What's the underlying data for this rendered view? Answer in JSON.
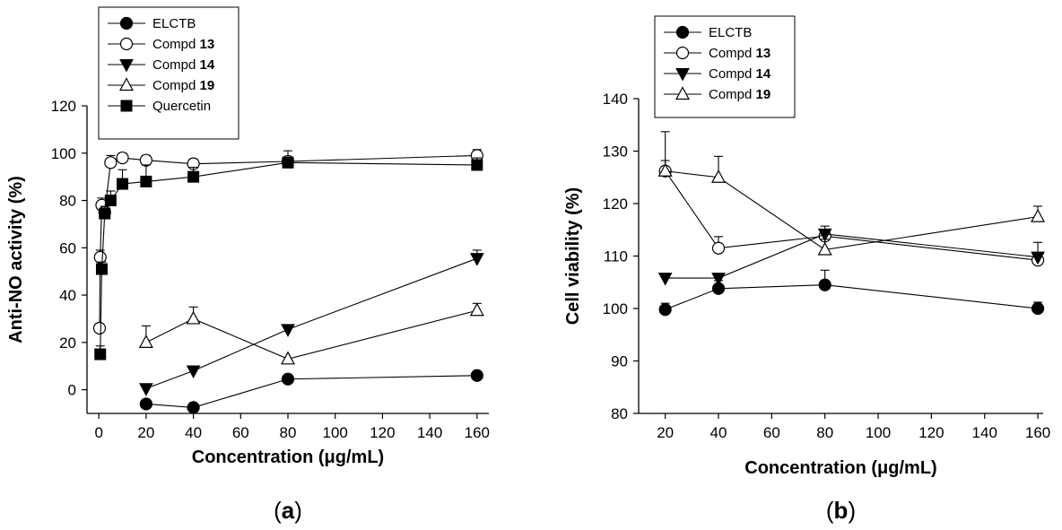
{
  "chart_data": [
    {
      "type": "line",
      "panel": "a",
      "xlabel": "Concentration (μg/mL)",
      "ylabel": "Anti-NO activity (%)",
      "xlim": [
        -5,
        165
      ],
      "ylim": [
        -10,
        120
      ],
      "xticks": [
        0,
        20,
        40,
        60,
        80,
        100,
        120,
        140,
        160
      ],
      "yticks": [
        0,
        20,
        40,
        60,
        80,
        100,
        120
      ],
      "legend_position": "top-left",
      "series": [
        {
          "name": "ELCTB",
          "bold": "",
          "marker": "circle-filled",
          "x": [
            20,
            40,
            80,
            160
          ],
          "y": [
            -6,
            -7.5,
            4.5,
            6
          ],
          "err": [
            0,
            0,
            0,
            0
          ]
        },
        {
          "name": "Compd ",
          "bold": "13",
          "marker": "circle-open",
          "x": [
            0.3,
            0.6,
            1.25,
            2.5,
            5,
            10,
            20,
            40,
            80,
            160
          ],
          "y": [
            26,
            56,
            78,
            75,
            96,
            98,
            97,
            95.5,
            96.5,
            99
          ],
          "err": [
            0,
            3,
            3,
            3,
            3,
            2,
            2,
            2,
            2,
            2.5
          ]
        },
        {
          "name": "Compd ",
          "bold": "14",
          "marker": "triangle-down-filled",
          "x": [
            20,
            40,
            80,
            160
          ],
          "y": [
            0.5,
            8,
            25.5,
            55.5
          ],
          "err": [
            0,
            0,
            0,
            3.5
          ]
        },
        {
          "name": "Compd ",
          "bold": "19",
          "marker": "triangle-up-open",
          "x": [
            20,
            40,
            80,
            160
          ],
          "y": [
            20,
            30,
            13,
            33.5
          ],
          "err": [
            7,
            5,
            0,
            3
          ]
        },
        {
          "name": "Quercetin",
          "bold": "",
          "marker": "square-filled",
          "x": [
            0.6,
            1.25,
            2.5,
            5,
            10,
            20,
            40,
            80,
            160
          ],
          "y": [
            15,
            51,
            74.5,
            80,
            87,
            88,
            90,
            96,
            95
          ],
          "err": [
            3.5,
            3,
            3,
            4,
            6,
            7,
            4,
            5,
            3
          ]
        }
      ],
      "panel_label": {
        "open": "(",
        "letter": "a",
        "close": ")"
      }
    },
    {
      "type": "line",
      "panel": "b",
      "xlabel": "Concentration (μg/mL)",
      "ylabel": "Cell viability (%)",
      "xlim": [
        10,
        162
      ],
      "ylim": [
        80,
        140
      ],
      "xticks": [
        20,
        40,
        60,
        80,
        100,
        120,
        140,
        160
      ],
      "yticks": [
        80,
        90,
        100,
        110,
        120,
        130,
        140
      ],
      "legend_position": "top-left",
      "series": [
        {
          "name": "ELCTB",
          "bold": "",
          "marker": "circle-filled",
          "x": [
            20,
            40,
            80,
            160
          ],
          "y": [
            99.8,
            103.8,
            104.5,
            100
          ],
          "err": [
            1.2,
            1.5,
            2.8,
            1.2
          ]
        },
        {
          "name": "Compd ",
          "bold": "13",
          "marker": "circle-open",
          "x": [
            20,
            40,
            80,
            160
          ],
          "y": [
            126.2,
            111.5,
            113.8,
            109.2
          ],
          "err": [
            2,
            2.2,
            1.2,
            1.5
          ]
        },
        {
          "name": "Compd ",
          "bold": "14",
          "marker": "triangle-down-filled",
          "x": [
            20,
            40,
            80,
            160
          ],
          "y": [
            105.8,
            105.8,
            114.2,
            109.8
          ],
          "err": [
            0.8,
            0.8,
            1.5,
            2.8
          ]
        },
        {
          "name": "Compd ",
          "bold": "19",
          "marker": "triangle-up-open",
          "x": [
            20,
            40,
            80,
            160
          ],
          "y": [
            126.2,
            125,
            111.2,
            117.5
          ],
          "err": [
            7.5,
            4,
            2,
            2
          ]
        }
      ],
      "panel_label": {
        "open": "(",
        "letter": "b",
        "close": ")"
      }
    }
  ]
}
